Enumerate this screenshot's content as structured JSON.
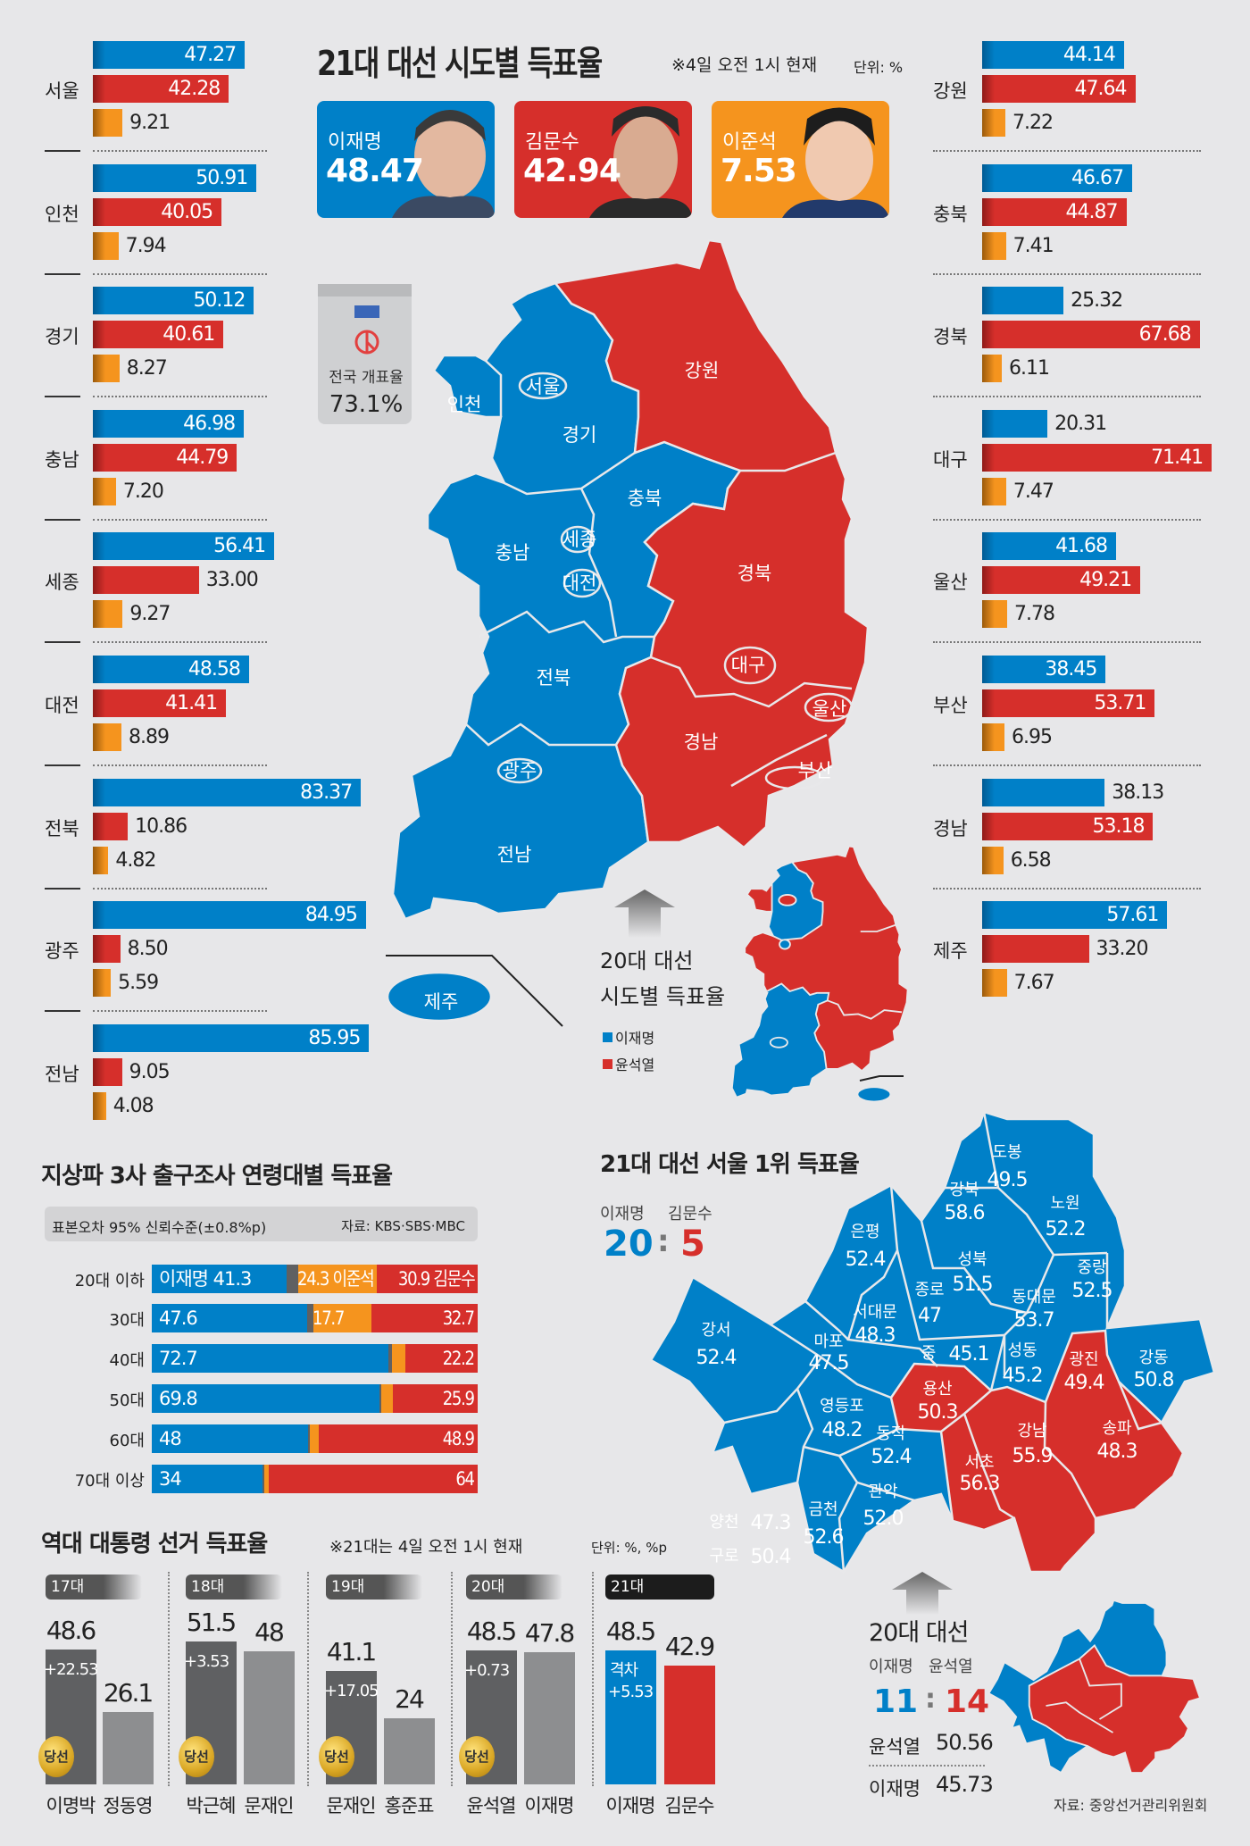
{
  "header": {
    "title": "21대 대선 시도별 득표율",
    "note": "※4일 오전 1시 현재",
    "unit": "단위: %"
  },
  "colors": {
    "lee_jaemyung": "#0080c8",
    "kim_moonsoo": "#d62f2b",
    "lee_junseok": "#f5941e",
    "others": "#5f6062",
    "past": "#8d8e90"
  },
  "candidates": [
    {
      "name": "이재명",
      "value": "48.47",
      "color": "#0080c8"
    },
    {
      "name": "김문수",
      "value": "42.94",
      "color": "#d62f2b"
    },
    {
      "name": "이준석",
      "value": "7.53",
      "color": "#f5941e"
    }
  ],
  "turnout": {
    "label": "전국 개표율",
    "value": "73.1%"
  },
  "regions_left": [
    {
      "name": "서울",
      "lee": "47.27",
      "kim": "42.28",
      "junseok": "9.21"
    },
    {
      "name": "인천",
      "lee": "50.91",
      "kim": "40.05",
      "junseok": "7.94"
    },
    {
      "name": "경기",
      "lee": "50.12",
      "kim": "40.61",
      "junseok": "8.27"
    },
    {
      "name": "충남",
      "lee": "46.98",
      "kim": "44.79",
      "junseok": "7.20"
    },
    {
      "name": "세종",
      "lee": "56.41",
      "kim": "33.00",
      "junseok": "9.27"
    },
    {
      "name": "대전",
      "lee": "48.58",
      "kim": "41.41",
      "junseok": "8.89"
    },
    {
      "name": "전북",
      "lee": "83.37",
      "kim": "10.86",
      "junseok": "4.82"
    },
    {
      "name": "광주",
      "lee": "84.95",
      "kim": "8.50",
      "junseok": "5.59"
    },
    {
      "name": "전남",
      "lee": "85.95",
      "kim": "9.05",
      "junseok": "4.08"
    }
  ],
  "regions_right": [
    {
      "name": "강원",
      "lee": "44.14",
      "kim": "47.64",
      "junseok": "7.22"
    },
    {
      "name": "충북",
      "lee": "46.67",
      "kim": "44.87",
      "junseok": "7.41"
    },
    {
      "name": "경북",
      "lee": "25.32",
      "kim": "67.68",
      "junseok": "6.11"
    },
    {
      "name": "대구",
      "lee": "20.31",
      "kim": "71.41",
      "junseok": "7.47"
    },
    {
      "name": "울산",
      "lee": "41.68",
      "kim": "49.21",
      "junseok": "7.78"
    },
    {
      "name": "부산",
      "lee": "38.45",
      "kim": "53.71",
      "junseok": "6.95"
    },
    {
      "name": "경남",
      "lee": "38.13",
      "kim": "53.18",
      "junseok": "6.58"
    },
    {
      "name": "제주",
      "lee": "57.61",
      "kim": "33.20",
      "junseok": "7.67"
    }
  ],
  "map": {
    "labels": {
      "seoul": "서울",
      "incheon": "인천",
      "gyeonggi": "경기",
      "gangwon": "강원",
      "chungbuk": "충북",
      "chungnam": "충남",
      "sejong": "세종",
      "daejeon": "대전",
      "gyeongbuk": "경북",
      "daegu": "대구",
      "ulsan": "울산",
      "gyeongnam": "경남",
      "busan": "부산",
      "jeonbuk": "전북",
      "gwangju": "광주",
      "jeonnam": "전남",
      "jeju": "제주"
    },
    "prev_title_1": "20대 대선",
    "prev_title_2": "시도별 득표율",
    "legend": [
      "이재명",
      "윤석열"
    ]
  },
  "age_exit_poll": {
    "title": "지상파 3사 출구조사 연령대별 득표율",
    "margin_note": "표본오차 95% 신뢰수준(±0.8%p)",
    "source": "자료: KBS·SBS·MBC",
    "rows": [
      {
        "age": "20대 이하",
        "lee": 41.3,
        "lee_label": "이재명  41.3",
        "junseok": 24.3,
        "junseok_label": "24.3 이준석",
        "kim": 30.9,
        "kim_label": "30.9 김문수"
      },
      {
        "age": "30대",
        "lee": 47.6,
        "lee_label": "47.6",
        "junseok": 17.7,
        "junseok_label": "17.7",
        "kim": 32.7,
        "kim_label": "32.7"
      },
      {
        "age": "40대",
        "lee": 72.7,
        "lee_label": "72.7",
        "junseok": 4.0,
        "kim": 22.2,
        "kim_label": "22.2"
      },
      {
        "age": "50대",
        "lee": 69.8,
        "lee_label": "69.8",
        "junseok": 3.7,
        "kim": 25.9,
        "kim_label": "25.9"
      },
      {
        "age": "60대",
        "lee": 48,
        "lee_label": "48",
        "junseok": 2.5,
        "kim": 48.9,
        "kim_label": "48.9"
      },
      {
        "age": "70대 이상",
        "lee": 34,
        "lee_label": "34",
        "junseok": 1.4,
        "kim": 64,
        "kim_label": "64"
      }
    ]
  },
  "history": {
    "title": "역대 대통령 선거 득표율",
    "note": "※21대는 4일 오전 1시 현재",
    "unit": "단위: %, %p",
    "winner_badge": "당선",
    "gap_label": "격차",
    "elections": [
      {
        "era": "17대",
        "margin": "+22.53",
        "candidates": [
          {
            "name": "이명박",
            "value": "48.6",
            "winner": true
          },
          {
            "name": "정동영",
            "value": "26.1"
          }
        ]
      },
      {
        "era": "18대",
        "margin": "+3.53",
        "candidates": [
          {
            "name": "박근혜",
            "value": "51.5",
            "winner": true
          },
          {
            "name": "문재인",
            "value": "48"
          }
        ]
      },
      {
        "era": "19대",
        "margin": "+17.05",
        "candidates": [
          {
            "name": "문재인",
            "value": "41.1",
            "winner": true
          },
          {
            "name": "홍준표",
            "value": "24"
          }
        ]
      },
      {
        "era": "20대",
        "margin": "+0.73",
        "candidates": [
          {
            "name": "윤석열",
            "value": "48.5",
            "winner": true
          },
          {
            "name": "이재명",
            "value": "47.8"
          }
        ]
      },
      {
        "era": "21대",
        "margin": "+5.53",
        "current": true,
        "candidates": [
          {
            "name": "이재명",
            "value": "48.5",
            "color": "#0080c8"
          },
          {
            "name": "김문수",
            "value": "42.9",
            "color": "#d62f2b"
          }
        ]
      }
    ]
  },
  "seoul": {
    "title": "21대 대선 서울 1위 득표율",
    "lee_label": "이재명",
    "kim_label": "김문수",
    "lee_count": "20",
    "kim_count": "5",
    "sep": ":",
    "districts": [
      {
        "name": "도봉",
        "value": "49.5",
        "winner": "lee"
      },
      {
        "name": "강북",
        "value": "58.6",
        "winner": "lee"
      },
      {
        "name": "노원",
        "value": "52.2",
        "winner": "lee"
      },
      {
        "name": "은평",
        "value": "52.4",
        "winner": "lee"
      },
      {
        "name": "성북",
        "value": "51.5",
        "winner": "lee"
      },
      {
        "name": "중랑",
        "value": "52.5",
        "winner": "lee"
      },
      {
        "name": "종로",
        "value": "47",
        "winner": "lee"
      },
      {
        "name": "서대문",
        "value": "48.3",
        "winner": "lee"
      },
      {
        "name": "동대문",
        "value": "53.7",
        "winner": "lee"
      },
      {
        "name": "강서",
        "value": "52.4",
        "winner": "lee"
      },
      {
        "name": "마포",
        "value": "47.5",
        "winner": "lee"
      },
      {
        "name": "중",
        "value": "45.1",
        "winner": "lee"
      },
      {
        "name": "성동",
        "value": "45.2",
        "winner": "lee"
      },
      {
        "name": "광진",
        "value": "49.4",
        "winner": "kim"
      },
      {
        "name": "강동",
        "value": "50.8",
        "winner": "lee"
      },
      {
        "name": "용산",
        "value": "50.3",
        "winner": "kim"
      },
      {
        "name": "영등포",
        "value": "48.2",
        "winner": "lee"
      },
      {
        "name": "양천",
        "value": "47.3",
        "winner": "lee"
      },
      {
        "name": "강남",
        "value": "55.9",
        "winner": "kim"
      },
      {
        "name": "송파",
        "value": "48.3",
        "winner": "kim"
      },
      {
        "name": "동작",
        "value": "52.4",
        "winner": "lee"
      },
      {
        "name": "구로",
        "value": "50.4",
        "winner": "lee"
      },
      {
        "name": "서초",
        "value": "56.3",
        "winner": "kim"
      },
      {
        "name": "관악",
        "value": "52.0",
        "winner": "lee"
      },
      {
        "name": "금천",
        "value": "52.6",
        "winner": "lee"
      }
    ],
    "prev": {
      "title": "20대 대선",
      "lee_label": "이재명",
      "yoon_label": "윤석열",
      "lee_count": "11",
      "yoon_count": "14",
      "yoon_result": "윤석열",
      "yoon_value": "50.56",
      "lee_result": "이재명",
      "lee_value": "45.73"
    },
    "source": "자료: 중앙선거관리위원회"
  }
}
